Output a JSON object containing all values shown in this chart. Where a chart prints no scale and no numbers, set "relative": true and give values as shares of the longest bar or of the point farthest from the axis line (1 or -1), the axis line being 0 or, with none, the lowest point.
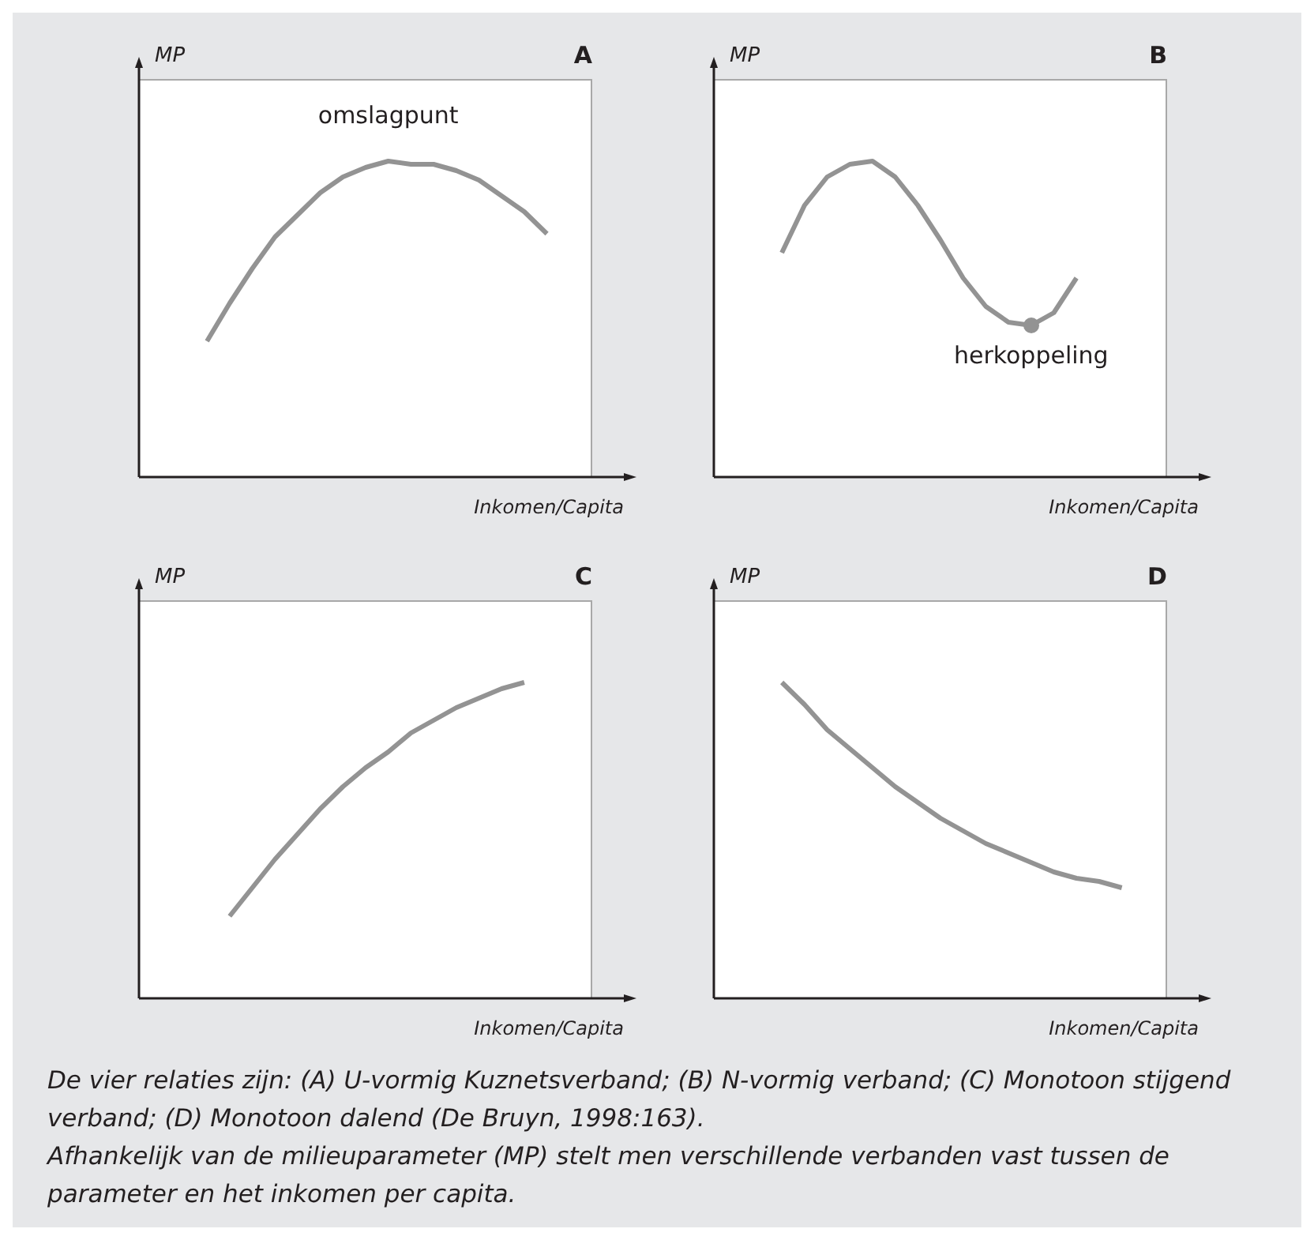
{
  "chart_data": [
    {
      "type": "line",
      "title": "A",
      "ylabel": "MP",
      "xlabel": "Inkomen/Capita",
      "relative": true,
      "tick_labels": false,
      "grid": false,
      "annotations": [
        "omslagpunt"
      ],
      "categories": [
        null,
        null,
        null,
        null,
        null,
        null,
        null,
        null,
        null,
        null,
        null,
        null,
        null,
        null,
        null,
        null,
        null,
        null,
        null,
        null,
        null
      ],
      "series": [
        {
          "color": "#939393",
          "values": [
            null,
            null,
            null,
            0.43,
            0.55,
            0.66,
            0.76,
            0.83,
            0.9,
            0.95,
            0.98,
            1,
            0.99,
            0.99,
            0.97,
            0.94,
            0.89,
            0.84,
            0.77,
            null,
            null
          ]
        }
      ]
    },
    {
      "type": "line",
      "title": "B",
      "ylabel": "MP",
      "xlabel": "Inkomen/Capita",
      "relative": true,
      "tick_labels": false,
      "grid": false,
      "annotations": [
        "herkoppeling"
      ],
      "categories": [
        null,
        null,
        null,
        null,
        null,
        null,
        null,
        null,
        null,
        null,
        null,
        null,
        null,
        null,
        null,
        null,
        null,
        null,
        null,
        null,
        null
      ],
      "series": [
        {
          "color": "#939393",
          "values": [
            null,
            null,
            null,
            0.71,
            0.86,
            0.95,
            0.99,
            1,
            0.95,
            0.86,
            0.75,
            0.63,
            0.54,
            0.49,
            0.48,
            0.52,
            0.63,
            null,
            null,
            null,
            null
          ]
        }
      ]
    },
    {
      "type": "line",
      "title": "C",
      "ylabel": "MP",
      "xlabel": "Inkomen/Capita",
      "relative": true,
      "tick_labels": false,
      "grid": false,
      "categories": [
        null,
        null,
        null,
        null,
        null,
        null,
        null,
        null,
        null,
        null,
        null,
        null,
        null,
        null,
        null,
        null,
        null,
        null,
        null,
        null,
        null
      ],
      "series": [
        {
          "color": "#939393",
          "values": [
            null,
            null,
            null,
            null,
            0.26,
            0.35,
            0.44,
            0.52,
            0.6,
            0.67,
            0.73,
            0.78,
            0.84,
            0.88,
            0.92,
            0.95,
            0.98,
            1,
            null,
            null,
            null
          ]
        }
      ]
    },
    {
      "type": "line",
      "title": "D",
      "ylabel": "MP",
      "xlabel": "Inkomen/Capita",
      "relative": true,
      "tick_labels": false,
      "grid": false,
      "annotations": [
        "De vier relaties zijn: (A) U-vormig Kuznetsverband; (B) N-vormig verband; (C) Monotoon stijgend verband; (D) Monotoon dalend (De Bruyn, 1998:163).",
        "Afhankelijk van de milieuparameter (MP) stelt men verschillende verbanden vast tussen de parameter en het inkomen per capita."
      ],
      "categories": [
        null,
        null,
        null,
        null,
        null,
        null,
        null,
        null,
        null,
        null,
        null,
        null,
        null,
        null,
        null,
        null,
        null,
        null,
        null,
        null,
        null
      ],
      "series": [
        {
          "color": "#939393",
          "values": [
            null,
            null,
            null,
            1,
            0.93,
            0.85,
            0.79,
            0.73,
            0.67,
            0.62,
            0.57,
            0.53,
            0.49,
            0.46,
            0.43,
            0.4,
            0.38,
            0.37,
            0.35,
            null,
            null
          ]
        }
      ]
    }
  ]
}
